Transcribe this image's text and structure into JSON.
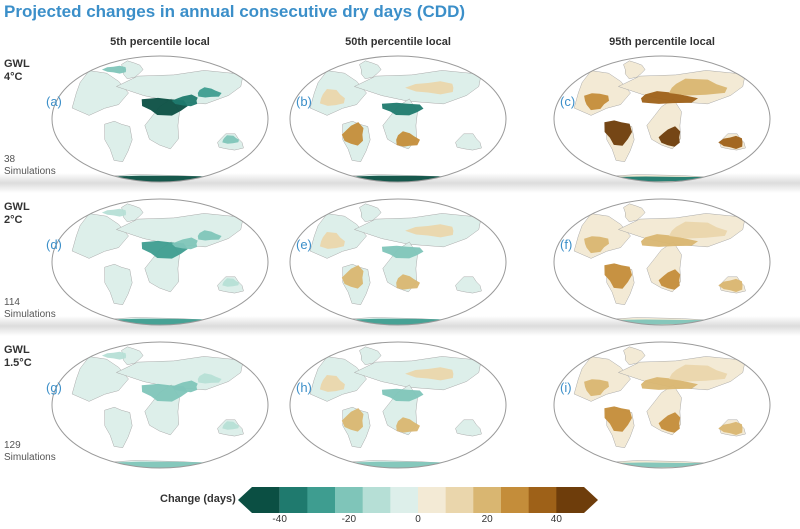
{
  "title": "Projected changes in annual consecutive dry days (CDD)",
  "columns": [
    "5th percentile local",
    "50th percentile local",
    "95th percentile local"
  ],
  "rows": [
    {
      "gwl": "GWL",
      "level": "4°C",
      "simulations_count": "38",
      "simulations_label": "Simulations",
      "panels": [
        "(a)",
        "(b)",
        "(c)"
      ],
      "intensity": 1.0
    },
    {
      "gwl": "GWL",
      "level": "2°C",
      "simulations_count": "114",
      "simulations_label": "Simulations",
      "panels": [
        "(d)",
        "(e)",
        "(f)"
      ],
      "intensity": 0.62
    },
    {
      "gwl": "GWL",
      "level": "1.5°C",
      "simulations_count": "129",
      "simulations_label": "Simulations",
      "panels": [
        "(g)",
        "(h)",
        "(i)"
      ],
      "intensity": 0.5
    }
  ],
  "colorbar": {
    "label": "Change (days)",
    "ticks": [
      "-40",
      "-20",
      "0",
      "20",
      "40"
    ],
    "colors": [
      "#0b4f43",
      "#1f7a6e",
      "#3e9d90",
      "#7fc5b9",
      "#b6dfd6",
      "#ddefea",
      "#f3ead5",
      "#ead6ac",
      "#d9b671",
      "#c48d3a",
      "#9e6118",
      "#6e3d0b"
    ]
  }
}
